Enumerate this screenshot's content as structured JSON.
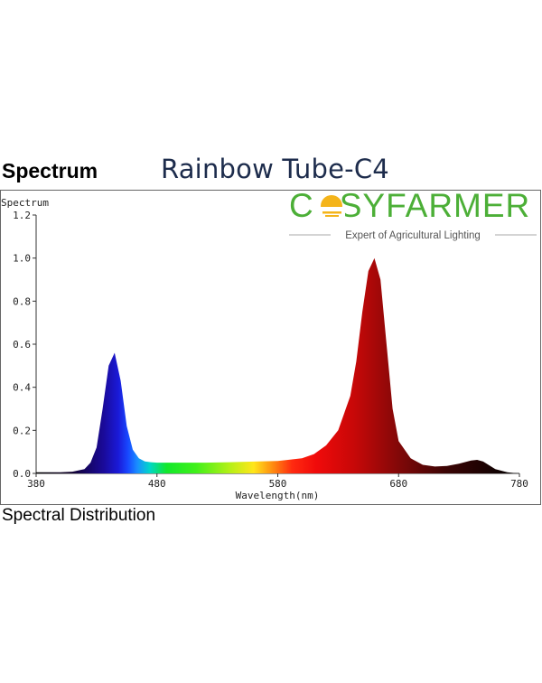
{
  "header": {
    "heading": "Spectrum",
    "product_name": "Rainbow Tube-C4"
  },
  "brand": {
    "name_before": "C",
    "name_after": "SYFARMER",
    "tagline": "Expert of Agricultural Lighting",
    "green": "#4caf37",
    "gold": "#f4b41a"
  },
  "footer": {
    "label": "Spectral Distribution"
  },
  "chart_data": {
    "type": "area",
    "ylabel": "Spectrum",
    "xlabel": "Wavelength(nm)",
    "xlim": [
      380,
      780
    ],
    "ylim": [
      0,
      1.2
    ],
    "x_ticks": [
      "380",
      "480",
      "580",
      "680",
      "780"
    ],
    "y_ticks": [
      "0.0",
      "0.2",
      "0.4",
      "0.6",
      "0.8",
      "1.0",
      "1.2"
    ],
    "series": [
      {
        "x": [
          380,
          400,
          410,
          420,
          425,
          430,
          435,
          440,
          445,
          450,
          455,
          460,
          465,
          470,
          475,
          480,
          490,
          500,
          520,
          540,
          560,
          580,
          600,
          610,
          620,
          630,
          640,
          645,
          650,
          655,
          660,
          665,
          670,
          675,
          680,
          690,
          700,
          710,
          720,
          730,
          740,
          745,
          750,
          760,
          770,
          775,
          780
        ],
        "values": [
          0.005,
          0.005,
          0.008,
          0.02,
          0.05,
          0.12,
          0.3,
          0.5,
          0.56,
          0.43,
          0.22,
          0.11,
          0.07,
          0.056,
          0.052,
          0.05,
          0.05,
          0.05,
          0.05,
          0.052,
          0.055,
          0.058,
          0.07,
          0.09,
          0.13,
          0.2,
          0.36,
          0.52,
          0.75,
          0.94,
          1.0,
          0.9,
          0.6,
          0.3,
          0.15,
          0.07,
          0.04,
          0.032,
          0.035,
          0.045,
          0.06,
          0.063,
          0.055,
          0.02,
          0.005,
          0.002,
          0.0
        ]
      }
    ]
  }
}
